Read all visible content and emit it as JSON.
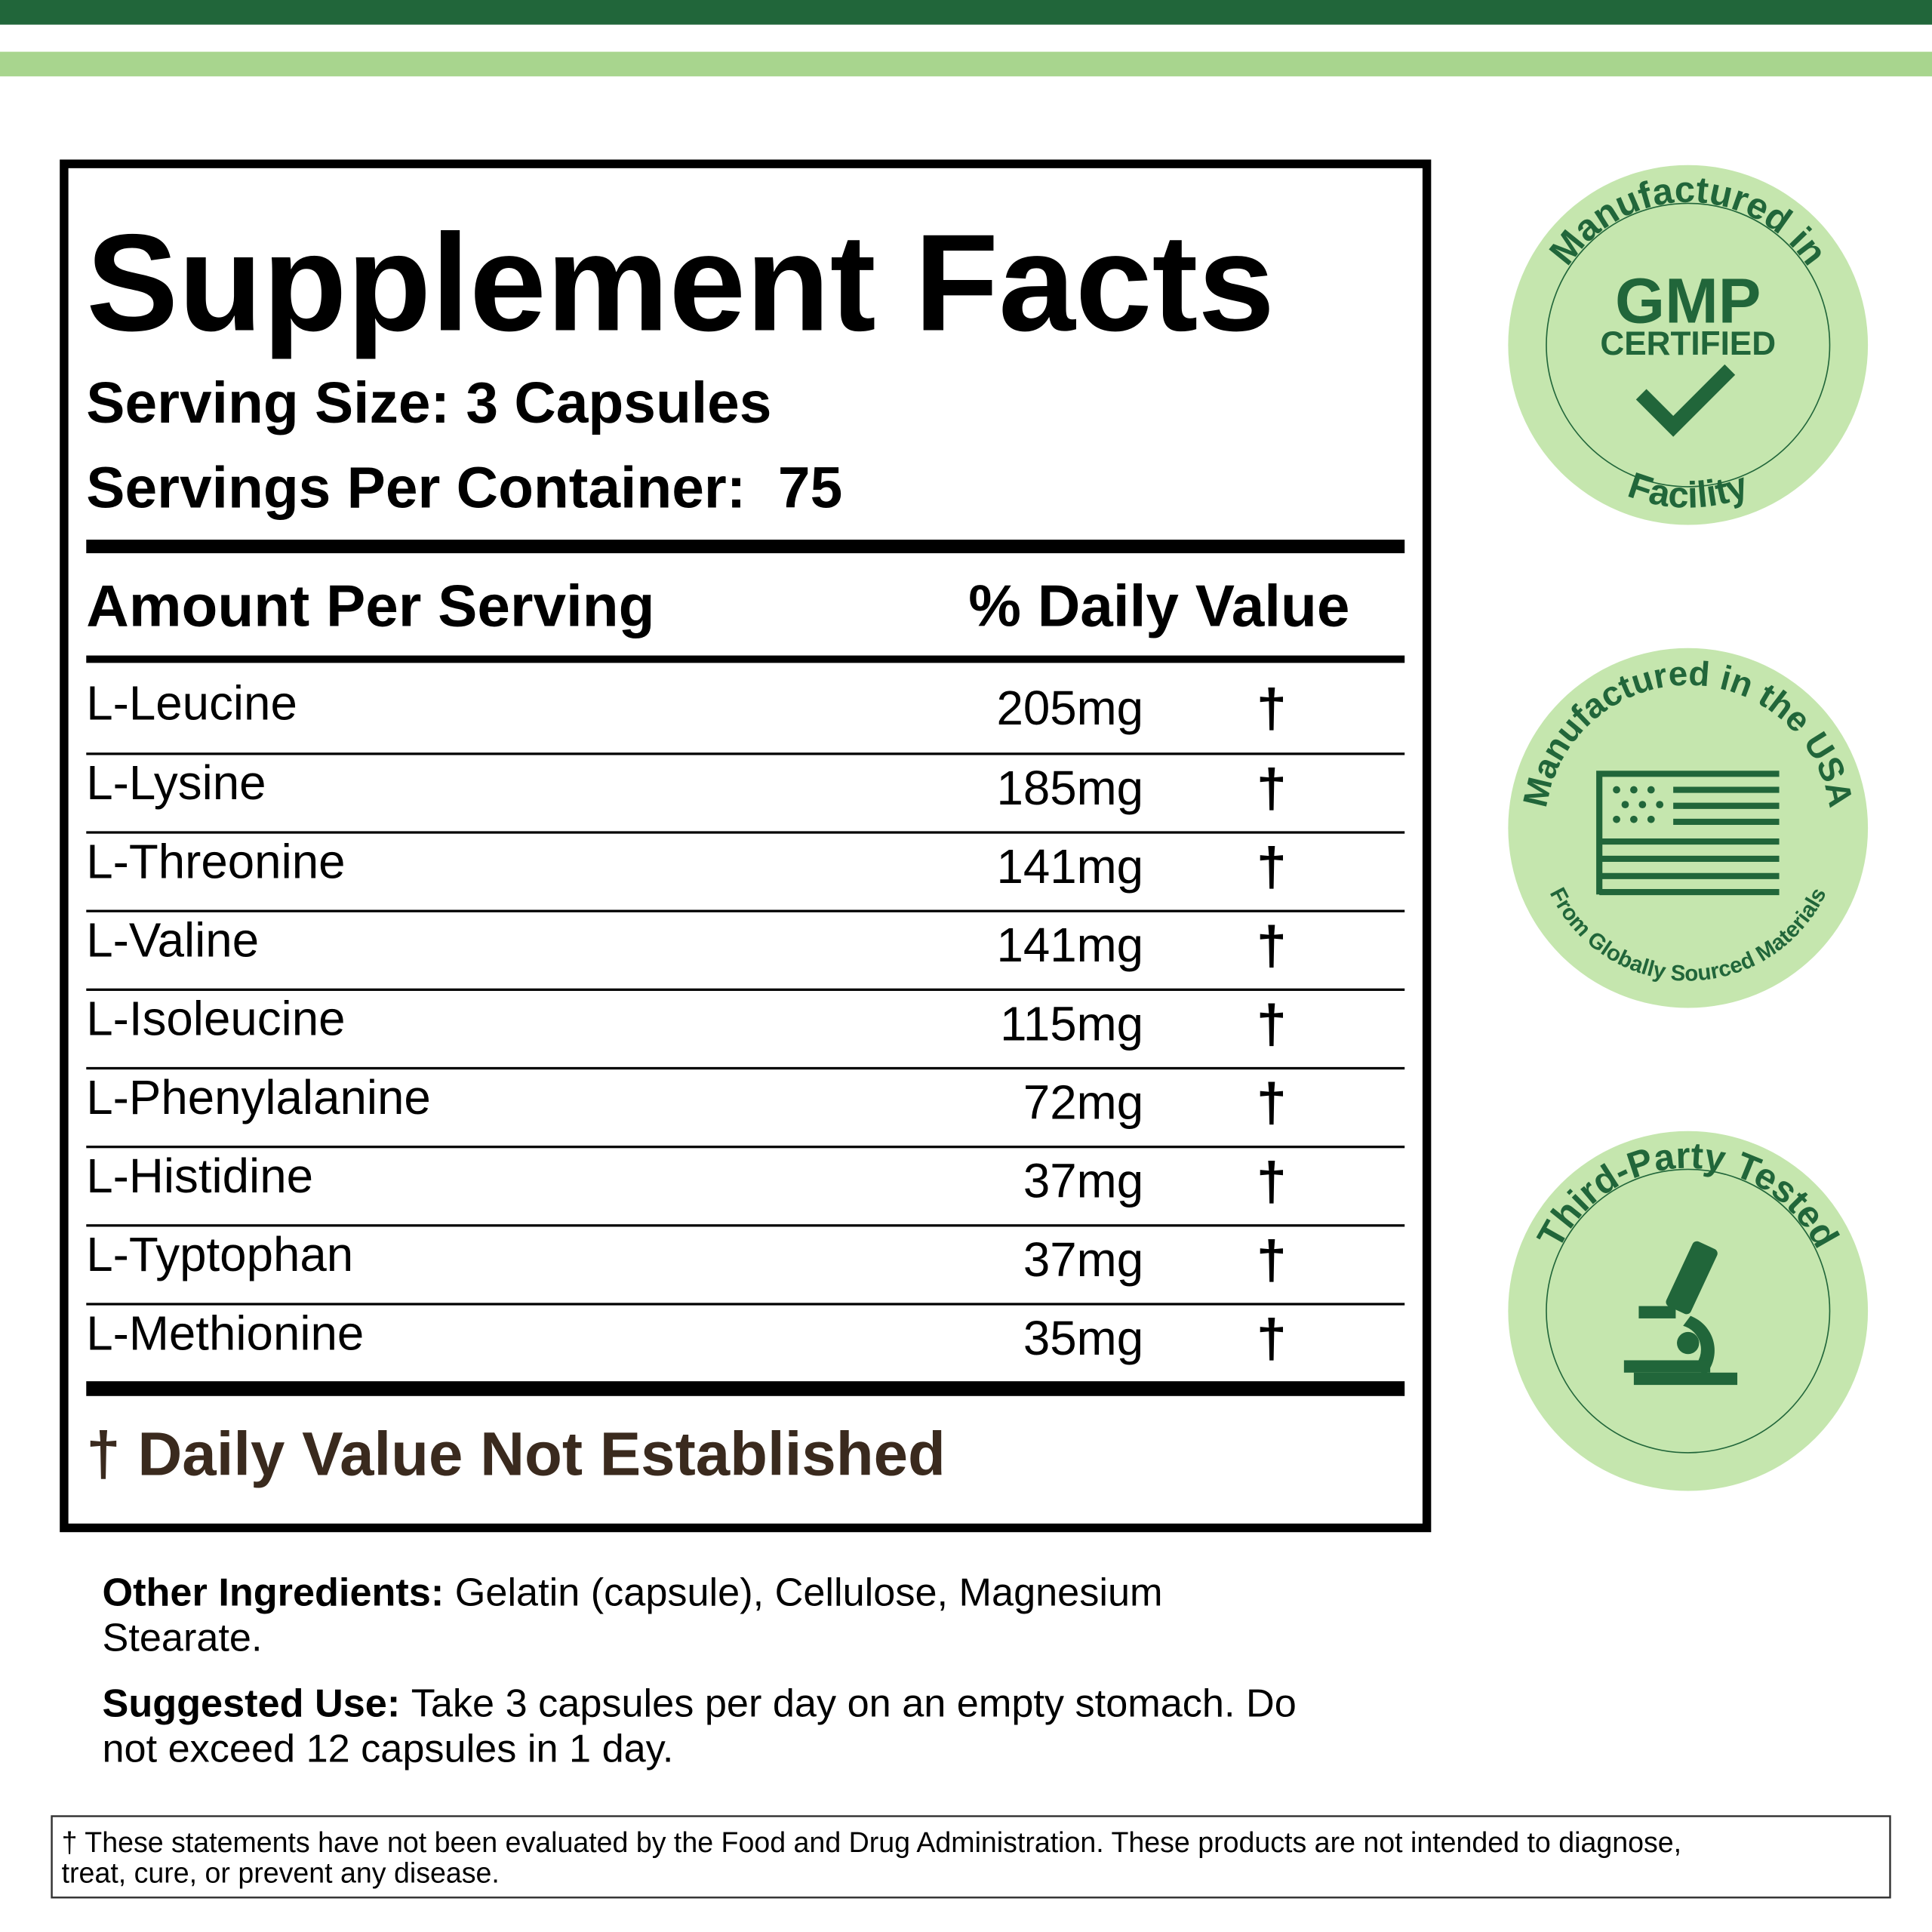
{
  "title": "Supplement Facts",
  "serving_size": "Serving Size: 3 Capsules",
  "servings_per_container": "Servings Per Container:  75",
  "table": {
    "header": [
      "Amount Per Serving",
      "% Daily Value"
    ],
    "rows": [
      [
        "L-Leucine",
        "205mg",
        "†"
      ],
      [
        "L-Lysine",
        "185mg",
        "†"
      ],
      [
        "L-Threonine",
        "141mg",
        "†"
      ],
      [
        "L-Valine",
        "141mg",
        "†"
      ],
      [
        "L-Isoleucine",
        "115mg",
        "†"
      ],
      [
        "L-Phenylalanine",
        "72mg",
        "†"
      ],
      [
        "L-Histidine",
        "37mg",
        "†"
      ],
      [
        "L-Typtophan",
        "37mg",
        "†"
      ],
      [
        "L-Methionine",
        "35mg",
        "†"
      ]
    ]
  },
  "footnote": "† Daily Value Not Established",
  "other_ingredients": {
    "label": "Other Ingredients:",
    "lines": [
      "Gelatin (capsule), Cellulose, Magnesium",
      "Stearate."
    ]
  },
  "suggested_use": {
    "label": "Suggested Use:",
    "lines": [
      "Take 3 capsules per day on an empty stomach. Do",
      "not exceed 12 capsules in 1 day."
    ]
  },
  "disclaimer": [
    "† These statements have not been evaluated by the Food and Drug Administration. These products are not intended to diagnose,",
    "treat, cure, or prevent any disease."
  ],
  "badges": [
    {
      "top": "Manufactured in",
      "main": "GMP",
      "sub": "CERTIFIED",
      "bottom": "Facility"
    },
    {
      "top": "Manufactured in the USA",
      "bottom": "From Globally Sourced Materials"
    },
    {
      "top": "Third-Party Tested"
    }
  ]
}
